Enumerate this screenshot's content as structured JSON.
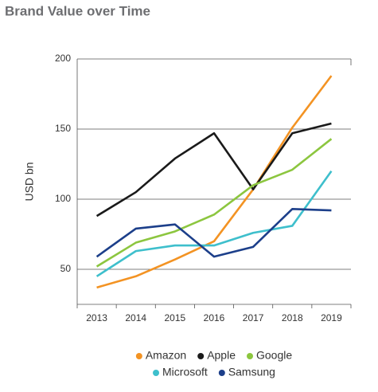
{
  "chart_data": {
    "type": "line",
    "title": "Brand Value over Time",
    "y_label": "USD bn",
    "categories": [
      "2013",
      "2014",
      "2015",
      "2016",
      "2017",
      "2018",
      "2019"
    ],
    "series": [
      {
        "name": "Amazon",
        "color": "#f39323",
        "values": [
          37,
          45,
          57,
          70,
          107,
          151,
          188
        ]
      },
      {
        "name": "Apple",
        "color": "#1a1a1a",
        "values": [
          88,
          105,
          129,
          147,
          107,
          147,
          154
        ]
      },
      {
        "name": "Google",
        "color": "#8cc63f",
        "values": [
          52,
          69,
          77,
          89,
          110,
          121,
          143
        ]
      },
      {
        "name": "Microsoft",
        "color": "#3ebfcc",
        "values": [
          45,
          63,
          67,
          67,
          76,
          81,
          120
        ]
      },
      {
        "name": "Samsung",
        "color": "#1c3f8a",
        "values": [
          59,
          79,
          82,
          59,
          66,
          93,
          92
        ]
      }
    ],
    "ylim": [
      25,
      200
    ],
    "yticks": [
      50,
      100,
      150,
      200
    ],
    "grid": true,
    "legend": "bottom"
  }
}
